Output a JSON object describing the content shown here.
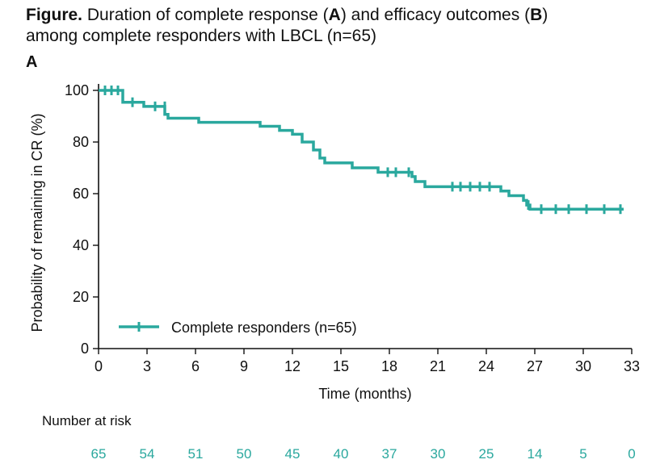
{
  "title": {
    "lead": "Figure.",
    "text1": " Duration of complete response (",
    "a": "A",
    "text2": ") and efficacy outcomes (",
    "b": "B",
    "text3": ")",
    "text4": "among complete responders with LBCL (n=65)"
  },
  "panel_label": "A",
  "chart_data": {
    "type": "line",
    "subtype": "kaplan-meier",
    "xlabel": "Time (months)",
    "ylabel": "Probability of remaining in CR (%)",
    "xlim": [
      0,
      33
    ],
    "ylim": [
      0,
      100
    ],
    "xticks": [
      0,
      3,
      6,
      9,
      12,
      15,
      18,
      21,
      24,
      27,
      30,
      33
    ],
    "yticks": [
      0,
      20,
      40,
      60,
      80,
      100
    ],
    "color": "#2aa89e",
    "series": [
      {
        "name": "Complete responders (n=65)",
        "steps": [
          [
            0,
            100
          ],
          [
            1.5,
            95.4
          ],
          [
            2.8,
            93.8
          ],
          [
            4.1,
            90.7
          ],
          [
            4.3,
            89.2
          ],
          [
            6.2,
            87.6
          ],
          [
            10,
            86.1
          ],
          [
            11.2,
            84.5
          ],
          [
            12,
            83.0
          ],
          [
            12.6,
            80.0
          ],
          [
            13.3,
            76.9
          ],
          [
            13.7,
            73.8
          ],
          [
            14,
            71.9
          ],
          [
            15.7,
            70.0
          ],
          [
            17.3,
            68.3
          ],
          [
            19.4,
            66.6
          ],
          [
            19.6,
            64.7
          ],
          [
            20.2,
            62.7
          ],
          [
            24.9,
            61.0
          ],
          [
            25.4,
            59.2
          ],
          [
            26.3,
            57.4
          ],
          [
            26.5,
            55.6
          ],
          [
            26.7,
            54.0
          ],
          [
            32.5,
            54.0
          ]
        ],
        "censored": [
          [
            0.4,
            100
          ],
          [
            0.8,
            100
          ],
          [
            1.2,
            100
          ],
          [
            2.1,
            95.4
          ],
          [
            3.5,
            93.8
          ],
          [
            4.1,
            93.8
          ],
          [
            17.9,
            68.3
          ],
          [
            18.4,
            68.3
          ],
          [
            19.2,
            68.3
          ],
          [
            21.9,
            62.7
          ],
          [
            22.4,
            62.7
          ],
          [
            23.0,
            62.7
          ],
          [
            23.6,
            62.7
          ],
          [
            24.2,
            62.7
          ],
          [
            26.6,
            55.6
          ],
          [
            27.4,
            54.0
          ],
          [
            28.3,
            54.0
          ],
          [
            29.1,
            54.0
          ],
          [
            30.2,
            54.0
          ],
          [
            31.3,
            54.0
          ],
          [
            32.3,
            54.0
          ]
        ]
      }
    ],
    "legend": "Complete responders (n=65)",
    "legend_position": "bottom-left"
  },
  "risk_table": {
    "title": "Number at risk",
    "values": [
      "65",
      "54",
      "51",
      "50",
      "45",
      "40",
      "37",
      "30",
      "25",
      "14",
      "5",
      "0"
    ]
  }
}
